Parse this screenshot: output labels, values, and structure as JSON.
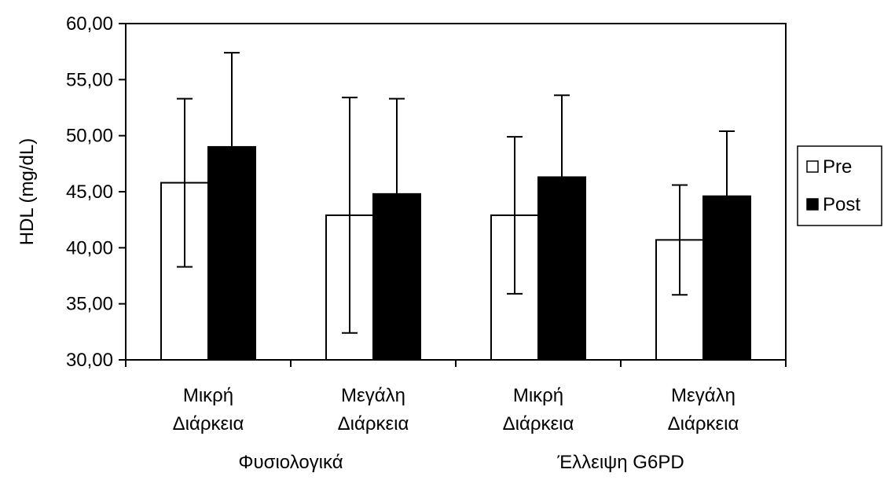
{
  "chart_data": {
    "type": "bar",
    "title": "",
    "xlabel": "",
    "ylabel": "HDL (mg/dL)",
    "ylim": [
      30,
      60
    ],
    "yticks": [
      "30,00",
      "35,00",
      "40,00",
      "45,00",
      "50,00",
      "55,00",
      "60,00"
    ],
    "grid": false,
    "legend_position": "right",
    "categories": [
      [
        "Μικρή",
        "Διάρκεια"
      ],
      [
        "Μεγάλη",
        "Διάρκεια"
      ],
      [
        "Μικρή",
        "Διάρκεια"
      ],
      [
        "Μεγάλη",
        "Διάρκεια"
      ]
    ],
    "groups": [
      {
        "label": "Φυσιολογικά",
        "categories": [
          0,
          1
        ]
      },
      {
        "label": "Έλλειψη G6PD",
        "categories": [
          2,
          3
        ]
      }
    ],
    "series": [
      {
        "name": "Pre",
        "fill": "#ffffff",
        "values": [
          45.8,
          42.9,
          42.9,
          40.7
        ],
        "errors": [
          7.5,
          10.5,
          7.0,
          4.9
        ]
      },
      {
        "name": "Post",
        "fill": "#000000",
        "values": [
          49.0,
          44.8,
          46.3,
          44.6
        ],
        "errors": [
          8.4,
          8.5,
          7.3,
          5.8
        ]
      }
    ]
  }
}
